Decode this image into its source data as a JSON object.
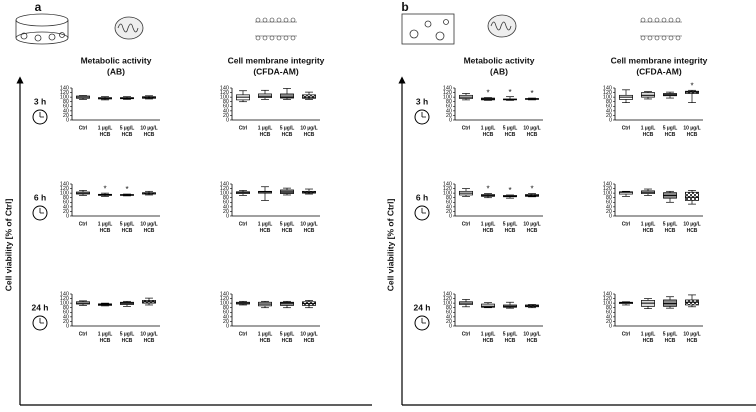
{
  "figure": {
    "y_label": "Cell viability [% of Ctrl]",
    "panels": [
      {
        "label": "a",
        "columns": [
          [
            "Metabolic activity",
            "(AB)"
          ],
          [
            "Cell membrane integrity",
            "(CFDA-AM)"
          ]
        ],
        "rows": [
          "3 h",
          "6 h",
          "24 h"
        ]
      },
      {
        "label": "b",
        "columns": [
          [
            "Metabolic activity",
            "(AB)"
          ],
          [
            "Cell membrane integrity",
            "(CFDA-AM)"
          ]
        ],
        "rows": [
          "3 h",
          "6 h",
          "24 h"
        ]
      }
    ]
  },
  "chart_data": [
    {
      "type": "box",
      "categories": [
        [
          "Ctrl"
        ],
        [
          "1 µg/L",
          "HCB"
        ],
        [
          "5 µg/L",
          "HCB"
        ],
        [
          "10 µg/L",
          "HCB"
        ]
      ],
      "fills": [
        "#ffffff",
        "#dcdcdc",
        "#8c8c8c",
        "checker"
      ],
      "ylim": [
        0,
        140
      ],
      "yticks": [
        0,
        20,
        40,
        60,
        80,
        100,
        120,
        140
      ],
      "significance_label": "*",
      "significant": [
        false,
        false,
        false,
        false
      ],
      "values": [
        {
          "whisker_low": 90,
          "q1": 95,
          "median": 100,
          "q3": 105,
          "whisker_high": 107
        },
        {
          "whisker_low": 88,
          "q1": 92,
          "median": 95,
          "q3": 98,
          "whisker_high": 102
        },
        {
          "whisker_low": 90,
          "q1": 93,
          "median": 96,
          "q3": 98,
          "whisker_high": 102
        },
        {
          "whisker_low": 92,
          "q1": 95,
          "median": 98,
          "q3": 102,
          "whisker_high": 106
        }
      ]
    },
    {
      "type": "box",
      "categories": [
        [
          "Ctrl"
        ],
        [
          "1 µg/L",
          "HCB"
        ],
        [
          "5 µg/L",
          "HCB"
        ],
        [
          "10 µg/L",
          "HCB"
        ]
      ],
      "fills": [
        "#ffffff",
        "#dcdcdc",
        "#8c8c8c",
        "checker"
      ],
      "ylim": [
        0,
        140
      ],
      "yticks": [
        0,
        20,
        40,
        60,
        80,
        100,
        120,
        140
      ],
      "significance_label": "*",
      "significant": [
        false,
        false,
        false,
        false
      ],
      "values": [
        {
          "whisker_low": 80,
          "q1": 88,
          "median": 100,
          "q3": 110,
          "whisker_high": 128
        },
        {
          "whisker_low": 90,
          "q1": 98,
          "median": 104,
          "q3": 114,
          "whisker_high": 130
        },
        {
          "whisker_low": 90,
          "q1": 96,
          "median": 100,
          "q3": 114,
          "whisker_high": 138
        },
        {
          "whisker_low": 90,
          "q1": 95,
          "median": 100,
          "q3": 110,
          "whisker_high": 122
        }
      ]
    },
    {
      "type": "box",
      "categories": [
        [
          "Ctrl"
        ],
        [
          "1 µg/L",
          "HCB"
        ],
        [
          "5 µg/L",
          "HCB"
        ],
        [
          "10 µg/L",
          "HCB"
        ]
      ],
      "fills": [
        "#ffffff",
        "#dcdcdc",
        "#8c8c8c",
        "checker"
      ],
      "ylim": [
        0,
        140
      ],
      "yticks": [
        0,
        20,
        40,
        60,
        80,
        100,
        120,
        140
      ],
      "significance_label": "*",
      "significant": [
        false,
        true,
        true,
        false
      ],
      "values": [
        {
          "whisker_low": 90,
          "q1": 96,
          "median": 100,
          "q3": 105,
          "whisker_high": 112
        },
        {
          "whisker_low": 86,
          "q1": 90,
          "median": 92,
          "q3": 95,
          "whisker_high": 100
        },
        {
          "whisker_low": 88,
          "q1": 90,
          "median": 92,
          "q3": 94,
          "whisker_high": 96
        },
        {
          "whisker_low": 92,
          "q1": 96,
          "median": 100,
          "q3": 102,
          "whisker_high": 108
        }
      ]
    },
    {
      "type": "box",
      "categories": [
        [
          "Ctrl"
        ],
        [
          "1 µg/L",
          "HCB"
        ],
        [
          "5 µg/L",
          "HCB"
        ],
        [
          "10 µg/L",
          "HCB"
        ]
      ],
      "fills": [
        "#ffffff",
        "#dcdcdc",
        "#8c8c8c",
        "checker"
      ],
      "ylim": [
        0,
        140
      ],
      "yticks": [
        0,
        20,
        40,
        60,
        80,
        100,
        120,
        140
      ],
      "significance_label": "*",
      "significant": [
        false,
        false,
        false,
        false
      ],
      "values": [
        {
          "whisker_low": 90,
          "q1": 98,
          "median": 102,
          "q3": 106,
          "whisker_high": 112
        },
        {
          "whisker_low": 68,
          "q1": 100,
          "median": 105,
          "q3": 108,
          "whisker_high": 128
        },
        {
          "whisker_low": 92,
          "q1": 98,
          "median": 105,
          "q3": 114,
          "whisker_high": 122
        },
        {
          "whisker_low": 96,
          "q1": 100,
          "median": 104,
          "q3": 108,
          "whisker_high": 118
        }
      ]
    },
    {
      "type": "box",
      "categories": [
        [
          "Ctrl"
        ],
        [
          "1 µg/L",
          "HCB"
        ],
        [
          "5 µg/L",
          "HCB"
        ],
        [
          "10 µg/L",
          "HCB"
        ]
      ],
      "fills": [
        "#ffffff",
        "#dcdcdc",
        "#8c8c8c",
        "checker"
      ],
      "ylim": [
        0,
        140
      ],
      "yticks": [
        0,
        20,
        40,
        60,
        80,
        100,
        120,
        140
      ],
      "significance_label": "*",
      "significant": [
        false,
        false,
        false,
        false
      ],
      "values": [
        {
          "whisker_low": 90,
          "q1": 96,
          "median": 100,
          "q3": 106,
          "whisker_high": 110
        },
        {
          "whisker_low": 88,
          "q1": 90,
          "median": 94,
          "q3": 97,
          "whisker_high": 100
        },
        {
          "whisker_low": 86,
          "q1": 94,
          "median": 100,
          "q3": 104,
          "whisker_high": 108
        },
        {
          "whisker_low": 92,
          "q1": 100,
          "median": 106,
          "q3": 112,
          "whisker_high": 122
        }
      ]
    },
    {
      "type": "box",
      "categories": [
        [
          "Ctrl"
        ],
        [
          "1 µg/L",
          "HCB"
        ],
        [
          "5 µg/L",
          "HCB"
        ],
        [
          "10 µg/L",
          "HCB"
        ]
      ],
      "fills": [
        "#ffffff",
        "#dcdcdc",
        "#8c8c8c",
        "checker"
      ],
      "ylim": [
        0,
        140
      ],
      "yticks": [
        0,
        20,
        40,
        60,
        80,
        100,
        120,
        140
      ],
      "significance_label": "*",
      "significant": [
        false,
        false,
        false,
        false
      ],
      "values": [
        {
          "whisker_low": 92,
          "q1": 96,
          "median": 100,
          "q3": 104,
          "whisker_high": 108
        },
        {
          "whisker_low": 80,
          "q1": 88,
          "median": 96,
          "q3": 104,
          "whisker_high": 108
        },
        {
          "whisker_low": 80,
          "q1": 90,
          "median": 100,
          "q3": 104,
          "whisker_high": 108
        },
        {
          "whisker_low": 80,
          "q1": 90,
          "median": 98,
          "q3": 106,
          "whisker_high": 112
        }
      ]
    },
    {
      "type": "box",
      "categories": [
        [
          "Ctrl"
        ],
        [
          "1 µg/L",
          "HCB"
        ],
        [
          "5 µg/L",
          "HCB"
        ],
        [
          "10 µg/L",
          "HCB"
        ]
      ],
      "fills": [
        "#ffffff",
        "#dcdcdc",
        "#8c8c8c",
        "checker"
      ],
      "ylim": [
        0,
        140
      ],
      "yticks": [
        0,
        20,
        40,
        60,
        80,
        100,
        120,
        140
      ],
      "significance_label": "*",
      "significant": [
        false,
        true,
        true,
        true
      ],
      "values": [
        {
          "whisker_low": 88,
          "q1": 94,
          "median": 100,
          "q3": 108,
          "whisker_high": 116
        },
        {
          "whisker_low": 86,
          "q1": 88,
          "median": 92,
          "q3": 96,
          "whisker_high": 98
        },
        {
          "whisker_low": 86,
          "q1": 88,
          "median": 90,
          "q3": 92,
          "whisker_high": 102
        },
        {
          "whisker_low": 88,
          "q1": 90,
          "median": 92,
          "q3": 94,
          "whisker_high": 96
        }
      ]
    },
    {
      "type": "box",
      "categories": [
        [
          "Ctrl"
        ],
        [
          "1 µg/L",
          "HCB"
        ],
        [
          "5 µg/L",
          "HCB"
        ],
        [
          "10 µg/L",
          "HCB"
        ]
      ],
      "fills": [
        "#ffffff",
        "#dcdcdc",
        "#8c8c8c",
        "checker"
      ],
      "ylim": [
        0,
        140
      ],
      "yticks": [
        0,
        20,
        40,
        60,
        80,
        100,
        120,
        140
      ],
      "significance_label": "*",
      "significant": [
        false,
        false,
        false,
        true
      ],
      "values": [
        {
          "whisker_low": 76,
          "q1": 90,
          "median": 100,
          "q3": 108,
          "whisker_high": 132
        },
        {
          "whisker_low": 92,
          "q1": 100,
          "median": 108,
          "q3": 120,
          "whisker_high": 124
        },
        {
          "whisker_low": 96,
          "q1": 106,
          "median": 110,
          "q3": 116,
          "whisker_high": 122
        },
        {
          "whisker_low": 76,
          "q1": 116,
          "median": 122,
          "q3": 126,
          "whisker_high": 130
        }
      ]
    },
    {
      "type": "box",
      "categories": [
        [
          "Ctrl"
        ],
        [
          "1 µg/L",
          "HCB"
        ],
        [
          "5 µg/L",
          "HCB"
        ],
        [
          "10 µg/L",
          "HCB"
        ]
      ],
      "fills": [
        "#ffffff",
        "#dcdcdc",
        "#8c8c8c",
        "checker"
      ],
      "ylim": [
        0,
        140
      ],
      "yticks": [
        0,
        20,
        40,
        60,
        80,
        100,
        120,
        140
      ],
      "significance_label": "*",
      "significant": [
        false,
        true,
        true,
        true
      ],
      "values": [
        {
          "whisker_low": 86,
          "q1": 92,
          "median": 100,
          "q3": 108,
          "whisker_high": 120
        },
        {
          "whisker_low": 80,
          "q1": 86,
          "median": 90,
          "q3": 94,
          "whisker_high": 98
        },
        {
          "whisker_low": 78,
          "q1": 84,
          "median": 86,
          "q3": 90,
          "whisker_high": 92
        },
        {
          "whisker_low": 84,
          "q1": 86,
          "median": 90,
          "q3": 94,
          "whisker_high": 98
        }
      ]
    },
    {
      "type": "box",
      "categories": [
        [
          "Ctrl"
        ],
        [
          "1 µg/L",
          "HCB"
        ],
        [
          "5 µg/L",
          "HCB"
        ],
        [
          "10 µg/L",
          "HCB"
        ]
      ],
      "fills": [
        "#ffffff",
        "#dcdcdc",
        "#8c8c8c",
        "checker"
      ],
      "ylim": [
        0,
        140
      ],
      "yticks": [
        0,
        20,
        40,
        60,
        80,
        100,
        120,
        140
      ],
      "significance_label": "*",
      "significant": [
        false,
        false,
        false,
        false
      ],
      "values": [
        {
          "whisker_low": 86,
          "q1": 96,
          "median": 104,
          "q3": 106,
          "whisker_high": 108
        },
        {
          "whisker_low": 90,
          "q1": 98,
          "median": 104,
          "q3": 110,
          "whisker_high": 118
        },
        {
          "whisker_low": 60,
          "q1": 78,
          "median": 90,
          "q3": 102,
          "whisker_high": 108
        },
        {
          "whisker_low": 52,
          "q1": 68,
          "median": 82,
          "q3": 104,
          "whisker_high": 112
        }
      ]
    },
    {
      "type": "box",
      "categories": [
        [
          "Ctrl"
        ],
        [
          "1 µg/L",
          "HCB"
        ],
        [
          "5 µg/L",
          "HCB"
        ],
        [
          "10 µg/L",
          "HCB"
        ]
      ],
      "fills": [
        "#ffffff",
        "#dcdcdc",
        "#8c8c8c",
        "checker"
      ],
      "ylim": [
        0,
        140
      ],
      "yticks": [
        0,
        20,
        40,
        60,
        80,
        100,
        120,
        140
      ],
      "significance_label": "*",
      "significant": [
        false,
        false,
        false,
        false
      ],
      "values": [
        {
          "whisker_low": 84,
          "q1": 94,
          "median": 100,
          "q3": 106,
          "whisker_high": 116
        },
        {
          "whisker_low": 80,
          "q1": 82,
          "median": 86,
          "q3": 96,
          "whisker_high": 102
        },
        {
          "whisker_low": 78,
          "q1": 82,
          "median": 86,
          "q3": 92,
          "whisker_high": 104
        },
        {
          "whisker_low": 80,
          "q1": 84,
          "median": 88,
          "q3": 92,
          "whisker_high": 94
        }
      ]
    },
    {
      "type": "box",
      "categories": [
        [
          "Ctrl"
        ],
        [
          "1 µg/L",
          "HCB"
        ],
        [
          "5 µg/L",
          "HCB"
        ],
        [
          "10 µg/L",
          "HCB"
        ]
      ],
      "fills": [
        "#ffffff",
        "#dcdcdc",
        "#8c8c8c",
        "checker"
      ],
      "ylim": [
        0,
        140
      ],
      "yticks": [
        0,
        20,
        40,
        60,
        80,
        100,
        120,
        140
      ],
      "significance_label": "*",
      "significant": [
        false,
        false,
        false,
        false
      ],
      "values": [
        {
          "whisker_low": 92,
          "q1": 98,
          "median": 102,
          "q3": 104,
          "whisker_high": 106
        },
        {
          "whisker_low": 76,
          "q1": 86,
          "median": 100,
          "q3": 112,
          "whisker_high": 120
        },
        {
          "whisker_low": 78,
          "q1": 86,
          "median": 98,
          "q3": 114,
          "whisker_high": 128
        },
        {
          "whisker_low": 84,
          "q1": 92,
          "median": 104,
          "q3": 114,
          "whisker_high": 136
        }
      ]
    }
  ]
}
